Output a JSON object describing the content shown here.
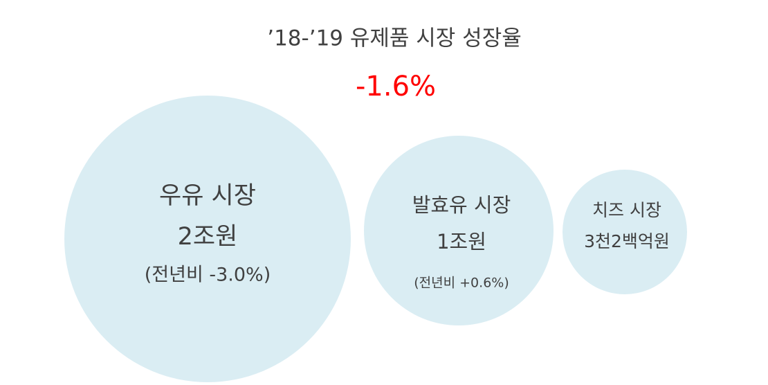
{
  "header": {
    "title": "’18-’19 유제품 시장 성장율",
    "growth": "-1.6%"
  },
  "bubbles": [
    {
      "name": "우유 시장",
      "amount": "2조원",
      "change": "(전년비 -3.0%)"
    },
    {
      "name": "발효유 시장",
      "amount": "1조원",
      "change": "(전년비 +0.6%)"
    },
    {
      "name": "치즈 시장",
      "amount": "3천2백억원"
    }
  ]
}
